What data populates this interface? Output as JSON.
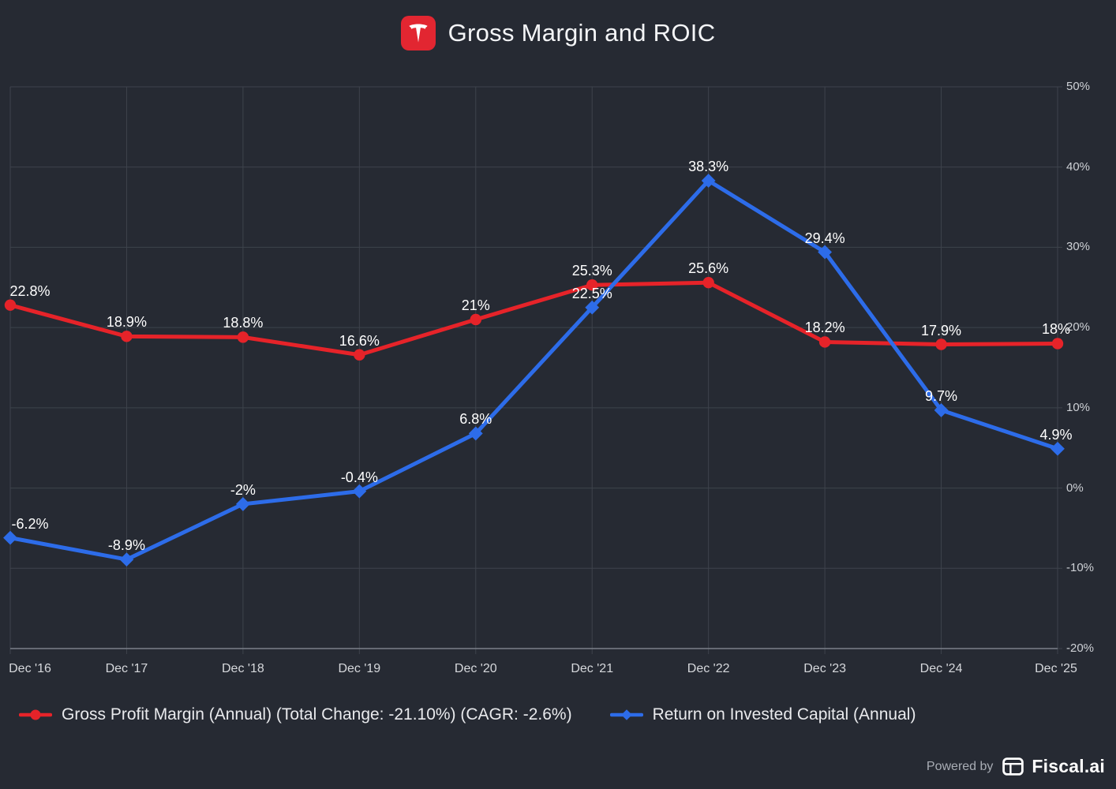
{
  "header": {
    "title": "Gross Margin and ROIC",
    "logo": "tesla-icon"
  },
  "chart_data": {
    "type": "line",
    "title": "Gross Margin and ROIC",
    "categories": [
      "Dec '16",
      "Dec '17",
      "Dec '18",
      "Dec '19",
      "Dec '20",
      "Dec '21",
      "Dec '22",
      "Dec '23",
      "Dec '24",
      "Dec '25"
    ],
    "series": [
      {
        "name": "Gross Profit Margin (Annual)",
        "legend_label": "Gross Profit Margin (Annual) (Total Change: -21.10%) (CAGR: -2.6%)",
        "color": "#e62329",
        "marker": "circle",
        "values": [
          22.8,
          18.9,
          18.8,
          16.6,
          21,
          25.3,
          25.6,
          18.2,
          17.9,
          18
        ],
        "labels": [
          "22.8%",
          "18.9%",
          "18.8%",
          "16.6%",
          "21%",
          "25.3%",
          "25.6%",
          "18.2%",
          "17.9%",
          "18%"
        ]
      },
      {
        "name": "Return on Invested Capital (Annual)",
        "legend_label": "Return on Invested Capital (Annual)",
        "color": "#2d6ce9",
        "marker": "diamond",
        "values": [
          -6.2,
          -8.9,
          -2,
          -0.4,
          6.8,
          22.5,
          38.3,
          29.4,
          9.7,
          4.9
        ],
        "labels": [
          "-6.2%",
          "-8.9%",
          "-2%",
          "-0.4%",
          "6.8%",
          "22.5%",
          "38.3%",
          "29.4%",
          "9.7%",
          "4.9%"
        ]
      }
    ],
    "ylim": [
      -20,
      50
    ],
    "yticks": [
      50,
      40,
      30,
      20,
      10,
      0,
      -10,
      -20
    ],
    "ytick_labels": [
      "50%",
      "40%",
      "30%",
      "20%",
      "10%",
      "0%",
      "-10%",
      "-20%"
    ],
    "grid": true,
    "legend_position": "bottom",
    "yaxis_side": "right"
  },
  "footer": {
    "powered_by": "Powered by",
    "brand": "Fiscal.ai"
  },
  "colors": {
    "background": "#262a33",
    "grid": "#3e434c",
    "axis_line": "#7b8089",
    "data_label": "#ffffff",
    "axis_text": "#ced1d6",
    "red": "#e62329",
    "blue": "#2d6ce9",
    "tesla_badge": "#e22631"
  }
}
